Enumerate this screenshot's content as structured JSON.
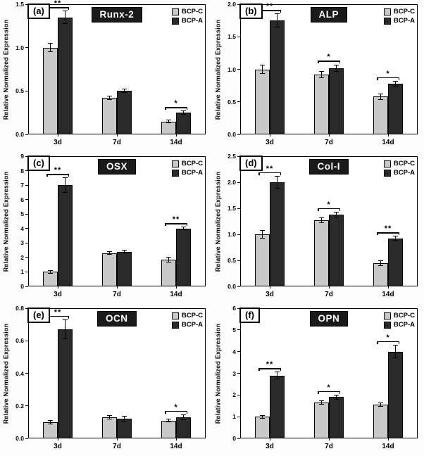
{
  "figure": {
    "ylabel": "Relative Normalized Expression",
    "legend": [
      "BCP-C",
      "BCP-A"
    ],
    "colors": {
      "bcp_c": "#c8c8c8",
      "bcp_a": "#2a2a2a",
      "title_bg": "#1a1a1a",
      "title_text": "#ffffff"
    }
  },
  "chart_data": [
    {
      "type": "bar",
      "panel_label": "(a)",
      "title": "Runx-2",
      "ylabel": "Relative Normalized Expression",
      "categories": [
        "3d",
        "7d",
        "14d"
      ],
      "ylim": [
        0,
        1.5
      ],
      "yticks": [
        "0.0",
        "0.5",
        "1.0",
        "1.5"
      ],
      "legend_position": "top-right",
      "series": [
        {
          "name": "BCP-C",
          "values": [
            1.0,
            0.42,
            0.15
          ],
          "errors": [
            0.05,
            0.02,
            0.02
          ]
        },
        {
          "name": "BCP-A",
          "values": [
            1.35,
            0.5,
            0.25
          ],
          "errors": [
            0.07,
            0.02,
            0.02
          ]
        }
      ],
      "significance": [
        {
          "cat": 0,
          "label": "**"
        },
        {
          "cat": 2,
          "label": "*"
        }
      ]
    },
    {
      "type": "bar",
      "panel_label": "(b)",
      "title": "ALP",
      "ylabel": "Relative Normalized Expression",
      "categories": [
        "3d",
        "7d",
        "14d"
      ],
      "ylim": [
        0,
        2.0
      ],
      "yticks": [
        "0.0",
        "0.5",
        "1.0",
        "1.5",
        "2.0"
      ],
      "legend_position": "top-right",
      "series": [
        {
          "name": "BCP-C",
          "values": [
            1.0,
            0.92,
            0.58
          ],
          "errors": [
            0.07,
            0.05,
            0.04
          ]
        },
        {
          "name": "BCP-A",
          "values": [
            1.75,
            1.02,
            0.78
          ],
          "errors": [
            0.1,
            0.05,
            0.04
          ]
        }
      ],
      "significance": [
        {
          "cat": 0,
          "label": "**"
        },
        {
          "cat": 1,
          "label": "*"
        },
        {
          "cat": 2,
          "label": "*"
        }
      ]
    },
    {
      "type": "bar",
      "panel_label": "(c)",
      "title": "OSX",
      "ylabel": "Relative Normalized Expression",
      "categories": [
        "3d",
        "7d",
        "14d"
      ],
      "ylim": [
        0,
        9
      ],
      "yticks": [
        "0",
        "1",
        "2",
        "3",
        "4",
        "5",
        "6",
        "7",
        "8",
        "9"
      ],
      "legend_position": "top-right",
      "series": [
        {
          "name": "BCP-C",
          "values": [
            1.0,
            2.3,
            1.85
          ],
          "errors": [
            0.1,
            0.1,
            0.15
          ]
        },
        {
          "name": "BCP-A",
          "values": [
            7.0,
            2.4,
            4.0
          ],
          "errors": [
            0.5,
            0.1,
            0.1
          ]
        }
      ],
      "significance": [
        {
          "cat": 0,
          "label": "**"
        },
        {
          "cat": 2,
          "label": "**"
        }
      ]
    },
    {
      "type": "bar",
      "panel_label": "(d)",
      "title": "Col-I",
      "ylabel": "Relative Normalized Expression",
      "categories": [
        "3d",
        "7d",
        "14d"
      ],
      "ylim": [
        0,
        2.5
      ],
      "yticks": [
        "0.0",
        "0.5",
        "1.0",
        "1.5",
        "2.0",
        "2.5"
      ],
      "legend_position": "top-right",
      "series": [
        {
          "name": "BCP-C",
          "values": [
            1.0,
            1.27,
            0.45
          ],
          "errors": [
            0.08,
            0.05,
            0.05
          ]
        },
        {
          "name": "BCP-A",
          "values": [
            2.0,
            1.38,
            0.92
          ],
          "errors": [
            0.12,
            0.05,
            0.04
          ]
        }
      ],
      "significance": [
        {
          "cat": 0,
          "label": "**"
        },
        {
          "cat": 1,
          "label": "*"
        },
        {
          "cat": 2,
          "label": "**"
        }
      ]
    },
    {
      "type": "bar",
      "panel_label": "(e)",
      "title": "OCN",
      "ylabel": "Relative Normalized Expression",
      "categories": [
        "3d",
        "7d",
        "14d"
      ],
      "ylim": [
        0,
        0.8
      ],
      "yticks": [
        "0.0",
        "0.2",
        "0.4",
        "0.6",
        "0.8"
      ],
      "legend_position": "top-right",
      "series": [
        {
          "name": "BCP-C",
          "values": [
            0.1,
            0.13,
            0.11
          ],
          "errors": [
            0.01,
            0.01,
            0.01
          ]
        },
        {
          "name": "BCP-A",
          "values": [
            0.67,
            0.12,
            0.13
          ],
          "errors": [
            0.06,
            0.015,
            0.015
          ]
        }
      ],
      "significance": [
        {
          "cat": 0,
          "label": "**"
        },
        {
          "cat": 2,
          "label": "*"
        }
      ]
    },
    {
      "type": "bar",
      "panel_label": "(f)",
      "title": "OPN",
      "ylabel": "Relative Normalized Expression",
      "categories": [
        "3d",
        "7d",
        "14d"
      ],
      "ylim": [
        0,
        6
      ],
      "yticks": [
        "0",
        "1",
        "2",
        "3",
        "4",
        "5",
        "6"
      ],
      "legend_position": "top-right",
      "series": [
        {
          "name": "BCP-C",
          "values": [
            1.0,
            1.65,
            1.55
          ],
          "errors": [
            0.06,
            0.08,
            0.08
          ]
        },
        {
          "name": "BCP-A",
          "values": [
            2.9,
            1.9,
            4.0
          ],
          "errors": [
            0.15,
            0.1,
            0.3
          ]
        }
      ],
      "significance": [
        {
          "cat": 0,
          "label": "**"
        },
        {
          "cat": 1,
          "label": "*"
        },
        {
          "cat": 2,
          "label": "*"
        }
      ]
    }
  ]
}
